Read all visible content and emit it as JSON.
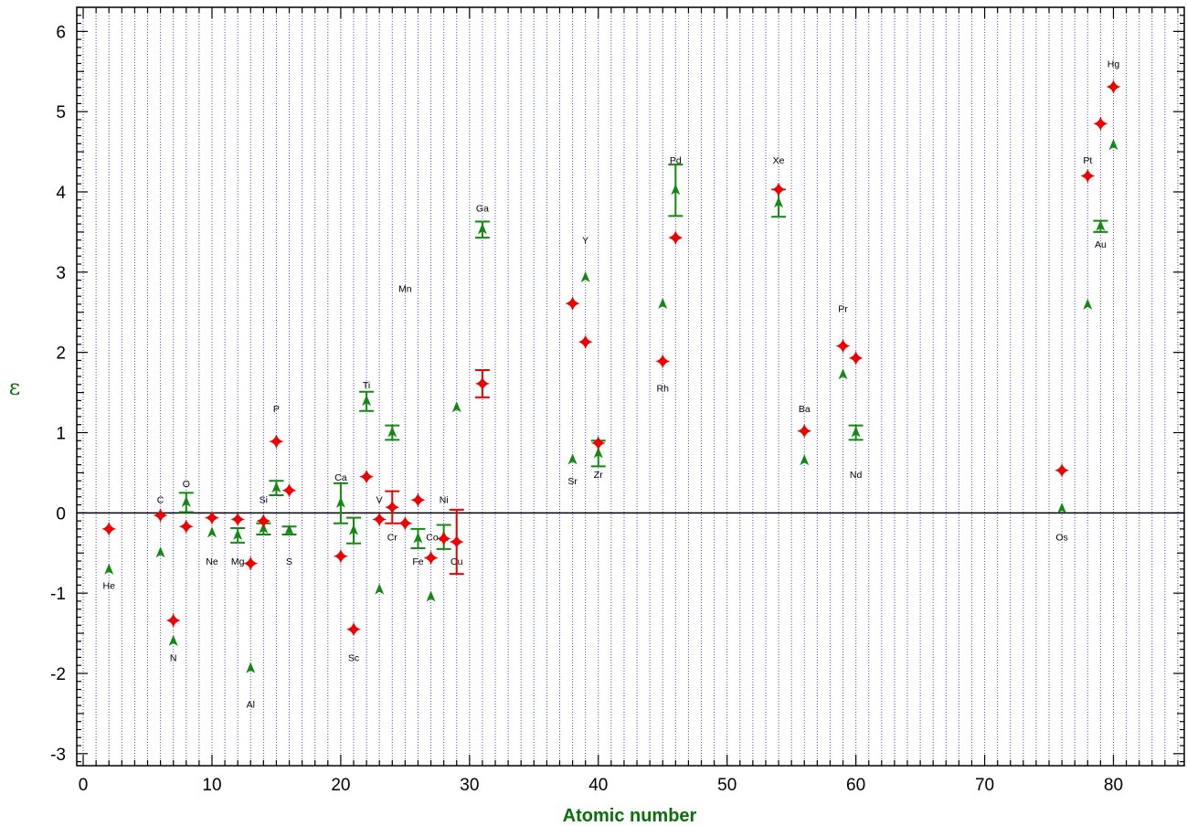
{
  "chart_data": {
    "type": "scatter",
    "title": "",
    "xlabel": "Atomic number",
    "ylabel": "ε",
    "xlim": [
      -0.5,
      85.5
    ],
    "ylim": [
      -3.15,
      6.3
    ],
    "x_ticks": [
      0,
      10,
      20,
      30,
      40,
      50,
      60,
      70,
      80
    ],
    "y_ticks": [
      -3,
      -2,
      -1,
      0,
      1,
      2,
      3,
      4,
      5,
      6
    ],
    "vertical_grid": "dotted blue line at every integer atomic number",
    "reference_line_y": 0,
    "colors": {
      "red_series": "#ee0000",
      "green_series": "#118811",
      "grid": "#4a4ae8",
      "axis_title": "#0a6e0a"
    },
    "series": [
      {
        "marker": "red-diamond",
        "points": [
          {
            "x": 2,
            "y": -0.2
          },
          {
            "x": 6,
            "y": -0.03
          },
          {
            "x": 7,
            "y": -1.34
          },
          {
            "x": 8,
            "y": -0.17
          },
          {
            "x": 10,
            "y": -0.06
          },
          {
            "x": 12,
            "y": -0.08
          },
          {
            "x": 13,
            "y": -0.63
          },
          {
            "x": 14,
            "y": -0.1
          },
          {
            "x": 15,
            "y": 0.89
          },
          {
            "x": 16,
            "y": 0.28
          },
          {
            "x": 20,
            "y": -0.54
          },
          {
            "x": 21,
            "y": -1.45
          },
          {
            "x": 22,
            "y": 0.45
          },
          {
            "x": 23,
            "y": -0.08
          },
          {
            "x": 24,
            "y": 0.07,
            "err": 0.2
          },
          {
            "x": 25,
            "y": -0.13
          },
          {
            "x": 26,
            "y": 0.16
          },
          {
            "x": 27,
            "y": -0.56
          },
          {
            "x": 28,
            "y": -0.32
          },
          {
            "x": 29,
            "y": -0.36,
            "err": 0.4
          },
          {
            "x": 31,
            "y": 1.61,
            "err": 0.17
          },
          {
            "x": 38,
            "y": 2.61
          },
          {
            "x": 39,
            "y": 2.13
          },
          {
            "x": 40,
            "y": 0.87
          },
          {
            "x": 45,
            "y": 1.89
          },
          {
            "x": 46,
            "y": 3.43
          },
          {
            "x": 54,
            "y": 4.03
          },
          {
            "x": 56,
            "y": 1.02
          },
          {
            "x": 59,
            "y": 2.08
          },
          {
            "x": 60,
            "y": 1.93
          },
          {
            "x": 76,
            "y": 0.53
          },
          {
            "x": 78,
            "y": 4.2
          },
          {
            "x": 79,
            "y": 4.85
          },
          {
            "x": 80,
            "y": 5.31
          }
        ]
      },
      {
        "marker": "green-triangle",
        "points": [
          {
            "x": 2,
            "y": -0.71
          },
          {
            "x": 6,
            "y": -0.5
          },
          {
            "x": 7,
            "y": -1.6
          },
          {
            "x": 8,
            "y": 0.13,
            "err": 0.12
          },
          {
            "x": 10,
            "y": -0.25
          },
          {
            "x": 12,
            "y": -0.28,
            "err": 0.09
          },
          {
            "x": 13,
            "y": -1.94
          },
          {
            "x": 14,
            "y": -0.2,
            "err": 0.07
          },
          {
            "x": 15,
            "y": 0.31,
            "err": 0.09
          },
          {
            "x": 16,
            "y": -0.22,
            "err": 0.05
          },
          {
            "x": 20,
            "y": 0.12,
            "err": 0.25
          },
          {
            "x": 21,
            "y": -0.22,
            "err": 0.16
          },
          {
            "x": 22,
            "y": 1.39,
            "err": 0.12
          },
          {
            "x": 23,
            "y": -0.96
          },
          {
            "x": 24,
            "y": 1.0,
            "err": 0.09
          },
          {
            "x": 26,
            "y": -0.32,
            "err": 0.12
          },
          {
            "x": 27,
            "y": -1.05
          },
          {
            "x": 28,
            "y": -0.3,
            "err": 0.15
          },
          {
            "x": 29,
            "y": 1.31
          },
          {
            "x": 31,
            "y": 3.53,
            "err": 0.1
          },
          {
            "x": 38,
            "y": 0.66
          },
          {
            "x": 39,
            "y": 2.93
          },
          {
            "x": 40,
            "y": 0.74,
            "err": 0.16
          },
          {
            "x": 45,
            "y": 2.6
          },
          {
            "x": 46,
            "y": 4.02,
            "err": 0.32
          },
          {
            "x": 54,
            "y": 3.86,
            "err": 0.17
          },
          {
            "x": 56,
            "y": 0.65
          },
          {
            "x": 59,
            "y": 1.72
          },
          {
            "x": 60,
            "y": 1.0,
            "err": 0.09
          },
          {
            "x": 76,
            "y": 0.05
          },
          {
            "x": 78,
            "y": 2.59
          },
          {
            "x": 79,
            "y": 3.57,
            "err": 0.07
          },
          {
            "x": 80,
            "y": 4.58
          }
        ]
      }
    ],
    "annotations": [
      {
        "text": "He",
        "x": 2,
        "y": -0.9
      },
      {
        "text": "C",
        "x": 6,
        "y": 0.17
      },
      {
        "text": "N",
        "x": 7,
        "y": -1.8
      },
      {
        "text": "O",
        "x": 8,
        "y": 0.37
      },
      {
        "text": "Ne",
        "x": 10,
        "y": -0.6
      },
      {
        "text": "Mg",
        "x": 12,
        "y": -0.6
      },
      {
        "text": "Al",
        "x": 13,
        "y": -2.38
      },
      {
        "text": "Si",
        "x": 14,
        "y": 0.17
      },
      {
        "text": "P",
        "x": 15,
        "y": 1.3
      },
      {
        "text": "S",
        "x": 16,
        "y": -0.6
      },
      {
        "text": "Ca",
        "x": 20,
        "y": 0.45
      },
      {
        "text": "Sc",
        "x": 21,
        "y": -1.8
      },
      {
        "text": "Ti",
        "x": 22,
        "y": 1.6
      },
      {
        "text": "V",
        "x": 23,
        "y": 0.17
      },
      {
        "text": "Cr",
        "x": 24,
        "y": -0.3
      },
      {
        "text": "Mn",
        "x": 25,
        "y": 2.8
      },
      {
        "text": "Ni",
        "x": 28,
        "y": 0.17
      },
      {
        "text": "Co",
        "x": 27.1,
        "y": -0.3
      },
      {
        "text": "Fe",
        "x": 26,
        "y": -0.6
      },
      {
        "text": "Cu",
        "x": 29,
        "y": -0.6
      },
      {
        "text": "Ga",
        "x": 31,
        "y": 3.8
      },
      {
        "text": "Sr",
        "x": 38,
        "y": 0.4
      },
      {
        "text": "Y",
        "x": 39,
        "y": 3.4
      },
      {
        "text": "Zr",
        "x": 40,
        "y": 0.48
      },
      {
        "text": "Rh",
        "x": 45,
        "y": 1.56
      },
      {
        "text": "Pd",
        "x": 46,
        "y": 4.4
      },
      {
        "text": "Xe",
        "x": 54,
        "y": 4.4
      },
      {
        "text": "Ba",
        "x": 56,
        "y": 1.3
      },
      {
        "text": "Nd",
        "x": 60,
        "y": 0.48
      },
      {
        "text": "Pr",
        "x": 59,
        "y": 2.55
      },
      {
        "text": "Os",
        "x": 76,
        "y": -0.3
      },
      {
        "text": "Pt",
        "x": 78,
        "y": 4.4
      },
      {
        "text": "Au",
        "x": 79,
        "y": 3.35
      },
      {
        "text": "Hg",
        "x": 80,
        "y": 5.6
      }
    ]
  }
}
